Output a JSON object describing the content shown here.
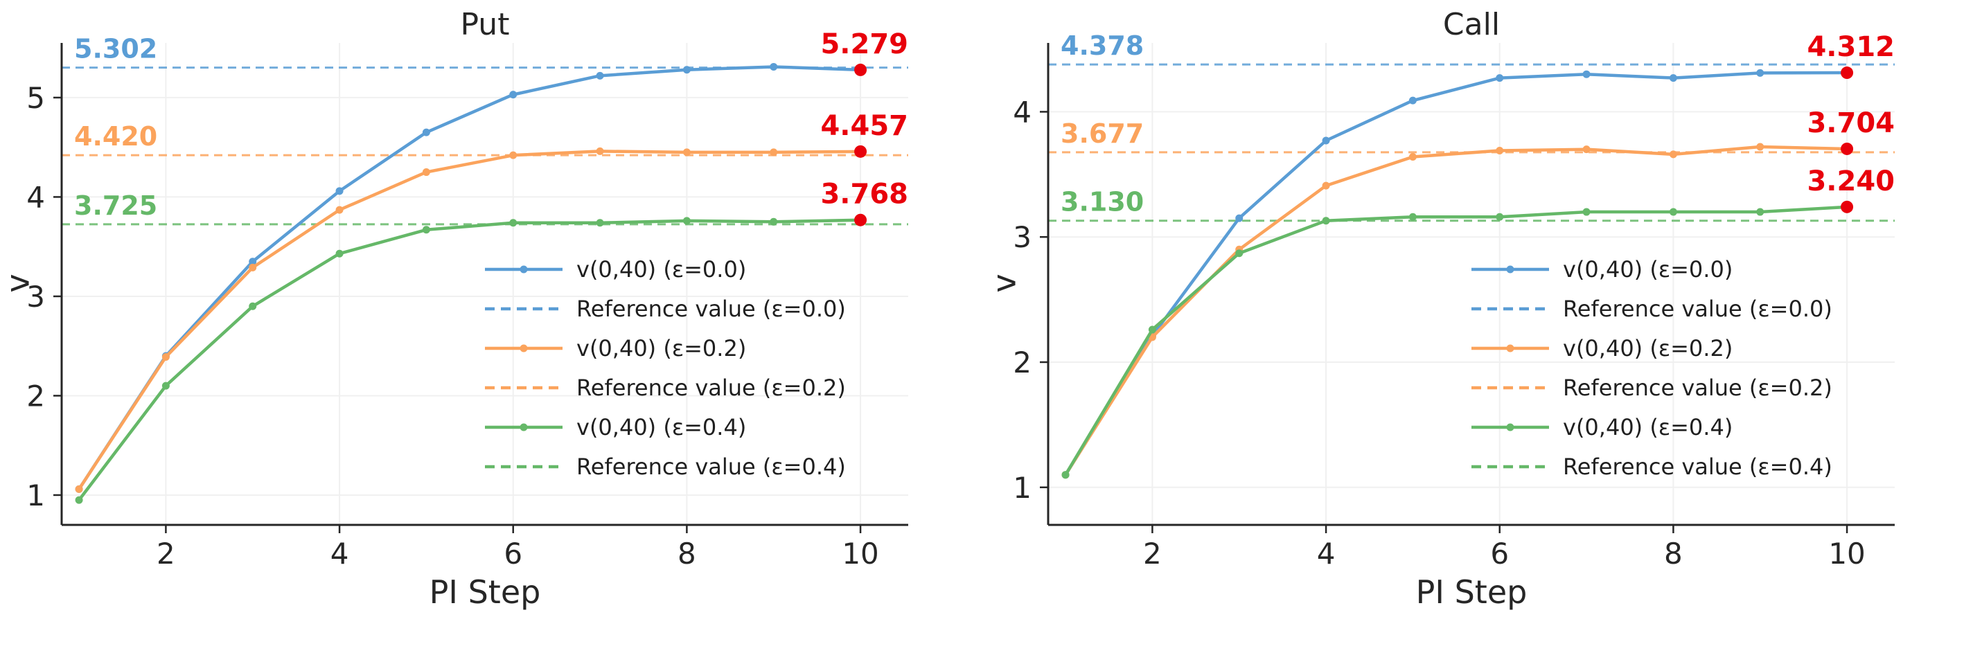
{
  "figure": {
    "background": "#ffffff",
    "text_color": "#262626",
    "final_annotation_color": "#e8000b"
  },
  "chart_data": [
    {
      "type": "line",
      "title": "Put",
      "xlabel": "PI Step",
      "ylabel": "v",
      "x": [
        1,
        2,
        3,
        4,
        5,
        6,
        7,
        8,
        9,
        10
      ],
      "xlim": [
        0.8,
        10.55
      ],
      "ylim": [
        0.7,
        5.55
      ],
      "xticks": [
        2,
        4,
        6,
        8,
        10
      ],
      "yticks": [
        1,
        2,
        3,
        4,
        5
      ],
      "grid": true,
      "legend_position": "inside center-right, no frame",
      "final_color": "#e8000b",
      "series": [
        {
          "name": "v(0,40) (ε=0.0)",
          "color": "#5a9dd5",
          "values": [
            1.06,
            2.4,
            3.35,
            4.06,
            4.65,
            5.03,
            5.22,
            5.28,
            5.31,
            5.279
          ],
          "final_label": "5.279"
        },
        {
          "name": "v(0,40) (ε=0.2)",
          "color": "#fba35c",
          "values": [
            1.06,
            2.39,
            3.29,
            3.87,
            4.25,
            4.42,
            4.46,
            4.45,
            4.45,
            4.457
          ],
          "final_label": "4.457"
        },
        {
          "name": "v(0,40) (ε=0.4)",
          "color": "#65b868",
          "values": [
            0.95,
            2.1,
            2.9,
            3.43,
            3.67,
            3.74,
            3.74,
            3.76,
            3.75,
            3.768
          ],
          "final_label": "3.768"
        }
      ],
      "references": [
        {
          "name": "Reference value (ε=0.0)",
          "color": "#5a9dd5",
          "value": 5.302,
          "label": "5.302"
        },
        {
          "name": "Reference value (ε=0.2)",
          "color": "#fba35c",
          "value": 4.42,
          "label": "4.420"
        },
        {
          "name": "Reference value (ε=0.4)",
          "color": "#65b868",
          "value": 3.725,
          "label": "3.725"
        }
      ]
    },
    {
      "type": "line",
      "title": "Call",
      "xlabel": "PI Step",
      "ylabel": "v",
      "x": [
        1,
        2,
        3,
        4,
        5,
        6,
        7,
        8,
        9,
        10
      ],
      "xlim": [
        0.8,
        10.55
      ],
      "ylim": [
        0.7,
        4.55
      ],
      "xticks": [
        2,
        4,
        6,
        8,
        10
      ],
      "yticks": [
        1,
        2,
        3,
        4
      ],
      "grid": true,
      "legend_position": "inside center-right, no frame",
      "final_color": "#e8000b",
      "series": [
        {
          "name": "v(0,40) (ε=0.0)",
          "color": "#5a9dd5",
          "values": [
            1.1,
            2.21,
            3.15,
            3.77,
            4.09,
            4.27,
            4.3,
            4.27,
            4.31,
            4.312
          ],
          "final_label": "4.312"
        },
        {
          "name": "v(0,40) (ε=0.2)",
          "color": "#fba35c",
          "values": [
            1.1,
            2.2,
            2.9,
            3.41,
            3.64,
            3.69,
            3.7,
            3.66,
            3.72,
            3.704
          ],
          "final_label": "3.704"
        },
        {
          "name": "v(0,40) (ε=0.4)",
          "color": "#65b868",
          "values": [
            1.1,
            2.26,
            2.87,
            3.13,
            3.16,
            3.16,
            3.2,
            3.2,
            3.2,
            3.24
          ],
          "final_label": "3.240"
        }
      ],
      "references": [
        {
          "name": "Reference value (ε=0.0)",
          "color": "#5a9dd5",
          "value": 4.378,
          "label": "4.378"
        },
        {
          "name": "Reference value (ε=0.2)",
          "color": "#fba35c",
          "value": 3.677,
          "label": "3.677"
        },
        {
          "name": "Reference value (ε=0.4)",
          "color": "#65b868",
          "value": 3.13,
          "label": "3.130"
        }
      ]
    }
  ]
}
